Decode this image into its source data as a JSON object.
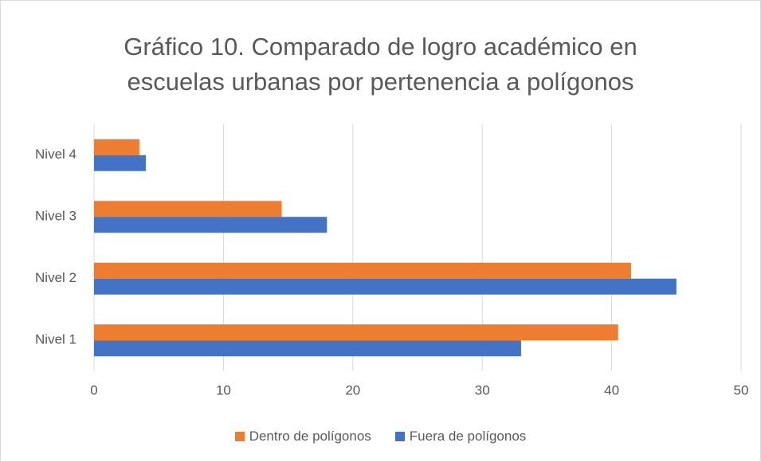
{
  "chart_data": {
    "type": "bar",
    "orientation": "horizontal",
    "title": "Gráfico 10. Comparado de logro académico en escuelas urbanas por pertenencia a polígonos",
    "categories": [
      "Nivel 1",
      "Nivel 2",
      "Nivel 3",
      "Nivel 4"
    ],
    "series": [
      {
        "name": "Dentro de polígonos",
        "color": "#ed7d31",
        "values": [
          40.5,
          41.5,
          14.5,
          3.5
        ]
      },
      {
        "name": "Fuera de polígonos",
        "color": "#4472c4",
        "values": [
          33,
          45,
          18,
          4
        ]
      }
    ],
    "xlim": [
      0,
      50
    ],
    "xticks": [
      0,
      10,
      20,
      30,
      40,
      50
    ],
    "grid": true,
    "legend": "bottom"
  }
}
